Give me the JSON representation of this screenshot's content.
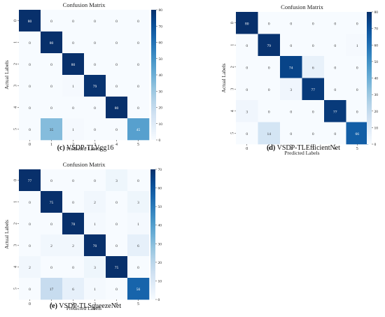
{
  "chart_data": [
    {
      "type": "heatmap",
      "title": "Confusion Matrix",
      "xlabel": "Predicted Labels",
      "ylabel": "Actual Labels",
      "x_ticks": [
        "0",
        "1",
        "2",
        "3",
        "4",
        "5"
      ],
      "y_ticks": [
        "0",
        "1",
        "2",
        "3",
        "4",
        "5"
      ],
      "matrix": [
        [
          80,
          0,
          0,
          0,
          0,
          0
        ],
        [
          0,
          80,
          0,
          0,
          0,
          0
        ],
        [
          0,
          0,
          80,
          0,
          0,
          0
        ],
        [
          0,
          0,
          1,
          79,
          0,
          0
        ],
        [
          0,
          0,
          0,
          0,
          80,
          0
        ],
        [
          0,
          35,
          1,
          0,
          0,
          45
        ]
      ],
      "colorbar": {
        "min": 0,
        "max": 80,
        "ticks": [
          0,
          10,
          20,
          30,
          40,
          50,
          60,
          70,
          80
        ]
      },
      "caption_letter": "(c)",
      "caption_text": "VSDP-TLVgg16"
    },
    {
      "type": "heatmap",
      "title": "Confusion Matrix",
      "xlabel": "Predicted Labels",
      "ylabel": "Actual Labels",
      "x_ticks": [
        "0",
        "1",
        "2",
        "3",
        "4",
        "5"
      ],
      "y_ticks": [
        "0",
        "1",
        "2",
        "3",
        "4",
        "5"
      ],
      "matrix": [
        [
          80,
          0,
          0,
          0,
          0,
          0
        ],
        [
          0,
          79,
          0,
          0,
          0,
          1
        ],
        [
          0,
          0,
          74,
          6,
          0,
          0
        ],
        [
          0,
          0,
          3,
          77,
          0,
          0
        ],
        [
          3,
          0,
          0,
          0,
          77,
          0
        ],
        [
          0,
          14,
          0,
          0,
          0,
          66
        ]
      ],
      "colorbar": {
        "min": 0,
        "max": 80,
        "ticks": [
          0,
          10,
          20,
          30,
          40,
          50,
          60,
          70,
          80
        ]
      },
      "caption_letter": "(d)",
      "caption_text": "VSDP-TLEfficientNet"
    },
    {
      "type": "heatmap",
      "title": "Confusion Matrix",
      "xlabel": "Predicted Labels",
      "ylabel": "Actual Labels",
      "x_ticks": [
        "0",
        "1",
        "2",
        "3",
        "4",
        "5"
      ],
      "y_ticks": [
        "0",
        "1",
        "2",
        "3",
        "4",
        "5"
      ],
      "matrix": [
        [
          77,
          0,
          0,
          0,
          3,
          0
        ],
        [
          0,
          75,
          0,
          2,
          0,
          3
        ],
        [
          0,
          0,
          78,
          1,
          0,
          1
        ],
        [
          0,
          2,
          2,
          70,
          0,
          6
        ],
        [
          2,
          0,
          0,
          3,
          75,
          0
        ],
        [
          0,
          17,
          6,
          1,
          0,
          56
        ]
      ],
      "colorbar": {
        "min": 0,
        "max": 70,
        "ticks": [
          0,
          10,
          20,
          30,
          40,
          50,
          60,
          70
        ]
      },
      "caption_letter": "(e)",
      "caption_text": "VSDP-TLSqueezeNet"
    }
  ]
}
